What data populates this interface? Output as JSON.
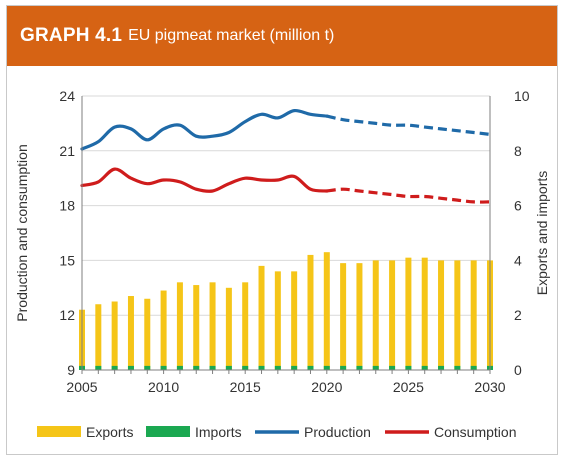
{
  "header": {
    "graph_label": "GRAPH 4.1",
    "graph_title": "EU pigmeat market (million t)"
  },
  "colors": {
    "header_bg": "#d66314",
    "exports": "#f5c518",
    "imports": "#1ba851",
    "production": "#1f6aa8",
    "consumption": "#cf1c1c",
    "grid": "#d9d9d9"
  },
  "chart_data": {
    "type": "bar+line",
    "categories": [
      2005,
      2006,
      2007,
      2008,
      2009,
      2010,
      2011,
      2012,
      2013,
      2014,
      2015,
      2016,
      2017,
      2018,
      2019,
      2020,
      2021,
      2022,
      2023,
      2024,
      2025,
      2026,
      2027,
      2028,
      2029,
      2030
    ],
    "ylabel": "Production and consumption",
    "y2label": "Exports and imports",
    "ylim": [
      9,
      24
    ],
    "y2lim": [
      0,
      10
    ],
    "yticks": [
      "9",
      "12",
      "15",
      "18",
      "21",
      "24"
    ],
    "y2ticks": [
      "0",
      "2",
      "4",
      "6",
      "8",
      "10"
    ],
    "xticks": [
      "2005",
      "2010",
      "2015",
      "2020",
      "2025",
      "2030"
    ],
    "forecast_from": 2020,
    "series": [
      {
        "name": "Exports",
        "type": "bar",
        "axis": "right",
        "values": [
          2.2,
          2.4,
          2.5,
          2.7,
          2.6,
          2.9,
          3.2,
          3.1,
          3.2,
          3.0,
          3.2,
          3.8,
          3.6,
          3.6,
          4.2,
          4.3,
          3.9,
          3.9,
          4.0,
          4.0,
          4.1,
          4.1,
          4.0,
          4.0,
          4.0,
          4.0
        ]
      },
      {
        "name": "Imports",
        "type": "bar",
        "axis": "right",
        "values": [
          0.15,
          0.15,
          0.15,
          0.15,
          0.15,
          0.15,
          0.15,
          0.15,
          0.15,
          0.15,
          0.15,
          0.15,
          0.15,
          0.15,
          0.15,
          0.15,
          0.15,
          0.15,
          0.15,
          0.15,
          0.15,
          0.15,
          0.15,
          0.15,
          0.15,
          0.15
        ]
      },
      {
        "name": "Production",
        "type": "line",
        "axis": "left",
        "values": [
          21.1,
          21.5,
          22.3,
          22.2,
          21.6,
          22.2,
          22.4,
          21.8,
          21.8,
          22.0,
          22.6,
          23.0,
          22.8,
          23.2,
          23.0,
          22.9,
          22.7,
          22.6,
          22.5,
          22.4,
          22.4,
          22.3,
          22.2,
          22.1,
          22.0,
          21.9
        ]
      },
      {
        "name": "Consumption",
        "type": "line",
        "axis": "left",
        "values": [
          19.1,
          19.3,
          20.0,
          19.5,
          19.2,
          19.4,
          19.3,
          18.9,
          18.8,
          19.2,
          19.5,
          19.4,
          19.4,
          19.6,
          18.9,
          18.8,
          18.9,
          18.8,
          18.7,
          18.6,
          18.5,
          18.5,
          18.4,
          18.3,
          18.2,
          18.2
        ]
      }
    ],
    "legend_position": "bottom"
  }
}
